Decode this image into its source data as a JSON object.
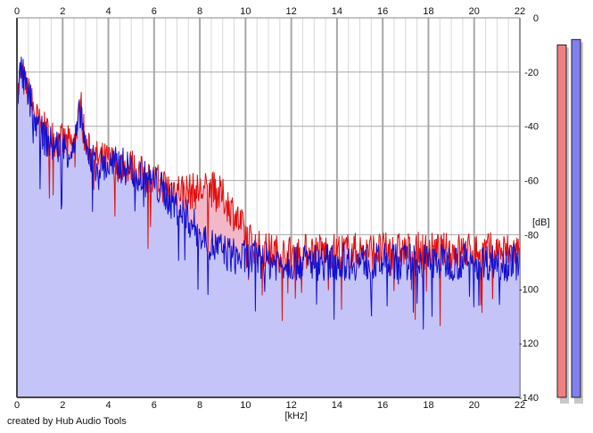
{
  "credit": "created by Hub Audio Tools",
  "chart_data": {
    "type": "area",
    "title": "",
    "xlabel": "[kHz]",
    "ylabel": "[dB]",
    "xlim": [
      0,
      22
    ],
    "ylim": [
      -140,
      0
    ],
    "x_ticks": [
      0,
      2,
      4,
      6,
      8,
      10,
      12,
      14,
      16,
      18,
      20,
      22
    ],
    "y_ticks": [
      0,
      -20,
      -40,
      -60,
      -80,
      -100,
      -120,
      -140
    ],
    "grid": true,
    "legend": "none",
    "colors": {
      "left_channel": "#e01010",
      "right_channel": "#1010d0",
      "left_fill": "#f2b8c8",
      "right_fill": "#c4c4f8",
      "grid_major": "#a8a8a8",
      "grid_minor": "#d8d8d8",
      "left_meter": "#f08080",
      "right_meter": "#8080f0"
    },
    "series": [
      {
        "x": [
          0,
          0.2,
          0.4,
          0.6,
          0.8,
          1,
          1.5,
          2,
          2.5,
          2.8,
          3,
          3.5,
          4,
          4.5,
          5,
          5.5,
          6,
          6.5,
          7,
          7.5,
          8,
          8.5,
          9,
          9.5,
          10,
          10.5,
          11,
          11.5,
          12,
          13,
          14,
          15,
          16,
          17,
          18,
          19,
          20,
          21,
          22
        ],
        "values": [
          -30,
          -20,
          -26,
          -30,
          -36,
          -40,
          -44,
          -46,
          -47,
          -32,
          -48,
          -52,
          -53,
          -54,
          -55,
          -58,
          -60,
          -62,
          -63,
          -64,
          -64,
          -63,
          -66,
          -72,
          -80,
          -85,
          -86,
          -87,
          -87,
          -86,
          -86,
          -86,
          -86,
          -86,
          -86,
          -86,
          -86,
          -86,
          -86
        ]
      },
      {
        "x": [
          0,
          0.2,
          0.4,
          0.6,
          0.8,
          1,
          1.5,
          2,
          2.5,
          2.8,
          3,
          3.5,
          4,
          4.5,
          5,
          5.5,
          6,
          6.5,
          7,
          7.5,
          8,
          8.5,
          9,
          9.5,
          10,
          10.5,
          11,
          11.5,
          12,
          13,
          14,
          15,
          16,
          17,
          18,
          19,
          20,
          21,
          22
        ],
        "values": [
          -28,
          -19,
          -27,
          -31,
          -38,
          -42,
          -47,
          -48,
          -49,
          -33,
          -50,
          -54,
          -55,
          -54,
          -56,
          -59,
          -61,
          -65,
          -70,
          -74,
          -80,
          -84,
          -86,
          -88,
          -89,
          -89,
          -90,
          -90,
          -90,
          -90,
          -90,
          -90,
          -90,
          -90,
          -90,
          -90,
          -90,
          -90,
          -90
        ]
      }
    ],
    "meters": [
      -10,
      -8
    ]
  }
}
